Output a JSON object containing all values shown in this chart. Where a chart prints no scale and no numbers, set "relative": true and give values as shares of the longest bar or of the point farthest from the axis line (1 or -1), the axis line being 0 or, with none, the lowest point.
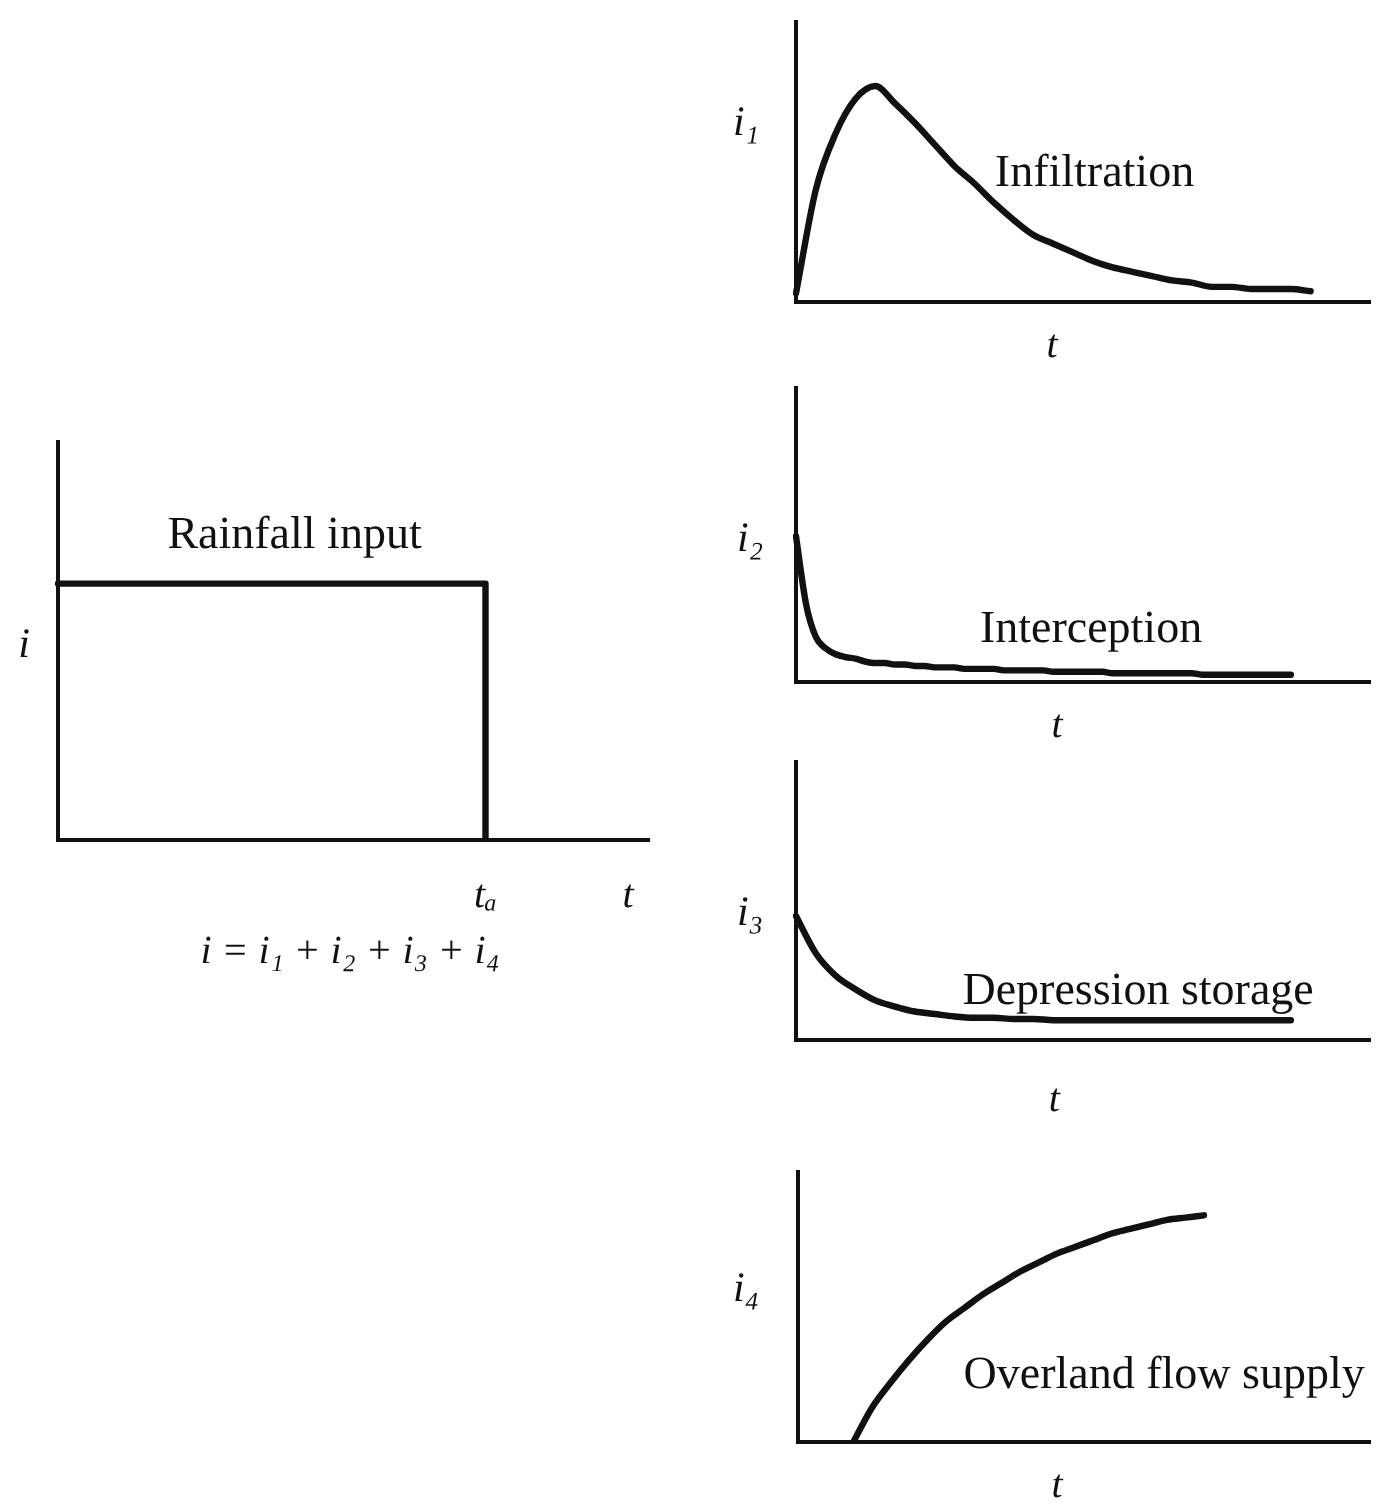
{
  "chart_data": [
    {
      "type": "step",
      "ylabel": "i",
      "categories": [
        null,
        null,
        null,
        "tₐ",
        "t"
      ],
      "series": [
        {
          "name": "Rainfall input",
          "color": "#111111",
          "values": [
            1,
            1,
            1,
            0,
            null
          ]
        }
      ],
      "relative": true,
      "annotations": [
        "i = i₁ + i₂ + i₃ + i₄"
      ]
    },
    {
      "type": "line",
      "ylabel": "i₁",
      "xlabel": "t",
      "categories": [
        null,
        null,
        null,
        null,
        null,
        null,
        null,
        null,
        null,
        null,
        null,
        null,
        null,
        null,
        null,
        null,
        null,
        null,
        null,
        null,
        null,
        null,
        null,
        null,
        null,
        null,
        null,
        null,
        null,
        null
      ],
      "series": [
        {
          "name": "Infiltration",
          "color": "#111111",
          "values": [
            0.04,
            0.52,
            0.78,
            0.94,
            1,
            0.92,
            0.83,
            0.73,
            0.63,
            0.55,
            0.46,
            0.38,
            0.31,
            0.27,
            0.23,
            0.19,
            0.16,
            0.14,
            0.12,
            0.1,
            0.09,
            0.07,
            0.07,
            0.06,
            0.06,
            0.06,
            0.05,
            null,
            null,
            null
          ]
        }
      ],
      "relative": true
    },
    {
      "type": "line",
      "ylabel": "i₂",
      "xlabel": "t",
      "categories": [
        null,
        null,
        null,
        null,
        null,
        null,
        null,
        null,
        null,
        null,
        null,
        null,
        null,
        null,
        null,
        null,
        null,
        null,
        null,
        null,
        null,
        null,
        null,
        null,
        null,
        null,
        null,
        null,
        null,
        null,
        null,
        null,
        null,
        null,
        null,
        null,
        null,
        null,
        null,
        null,
        null,
        null,
        null,
        null,
        null,
        null,
        null,
        null,
        null,
        null,
        null,
        null,
        null,
        null,
        null,
        null,
        null,
        null,
        null
      ],
      "series": [
        {
          "name": "Interception",
          "color": "#111111",
          "values": [
            1,
            0.54,
            0.31,
            0.23,
            0.19,
            0.17,
            0.16,
            0.14,
            0.13,
            0.13,
            0.12,
            0.12,
            0.11,
            0.11,
            0.1,
            0.1,
            0.1,
            0.09,
            0.09,
            0.09,
            0.09,
            0.08,
            0.08,
            0.08,
            0.08,
            0.08,
            0.07,
            0.07,
            0.07,
            0.07,
            0.07,
            0.07,
            0.06,
            0.06,
            0.06,
            0.06,
            0.06,
            0.06,
            0.06,
            0.06,
            0.06,
            0.05,
            0.05,
            0.05,
            0.05,
            0.05,
            0.05,
            0.05,
            0.05,
            0.05,
            0.05,
            null,
            null,
            null,
            null,
            null,
            null,
            null,
            null
          ]
        }
      ],
      "relative": true
    },
    {
      "type": "line",
      "ylabel": "i₃",
      "xlabel": "t",
      "categories": [
        null,
        null,
        null,
        null,
        null,
        null,
        null,
        null,
        null,
        null,
        null,
        null,
        null,
        null,
        null,
        null,
        null,
        null,
        null,
        null,
        null,
        null,
        null,
        null,
        null,
        null,
        null,
        null,
        null,
        null
      ],
      "series": [
        {
          "name": "Depression storage",
          "color": "#111111",
          "values": [
            1,
            0.7,
            0.52,
            0.41,
            0.32,
            0.27,
            0.23,
            0.21,
            0.19,
            0.18,
            0.18,
            0.17,
            0.17,
            0.16,
            0.16,
            0.16,
            0.16,
            0.16,
            0.16,
            0.16,
            0.16,
            0.16,
            0.16,
            0.16,
            0.16,
            0.16,
            null,
            null,
            null,
            null
          ]
        }
      ],
      "relative": true
    },
    {
      "type": "line",
      "ylabel": "i₄",
      "xlabel": "t",
      "categories": [
        null,
        null,
        null,
        null,
        null,
        null,
        null,
        null,
        null,
        null,
        null,
        null,
        null,
        null,
        null,
        null,
        null,
        null,
        null,
        null,
        null,
        null,
        null,
        null,
        null,
        null,
        null,
        null,
        null,
        null,
        null,
        null
      ],
      "series": [
        {
          "name": "Overland flow supply",
          "color": "#111111",
          "values": [
            null,
            null,
            null,
            0,
            0.15,
            0.26,
            0.36,
            0.45,
            0.53,
            0.59,
            0.65,
            0.7,
            0.75,
            0.79,
            0.83,
            0.86,
            0.89,
            0.92,
            0.94,
            0.96,
            0.98,
            0.99,
            1,
            null,
            null,
            null,
            null,
            null,
            null,
            null,
            null,
            null
          ]
        }
      ],
      "relative": true
    }
  ]
}
